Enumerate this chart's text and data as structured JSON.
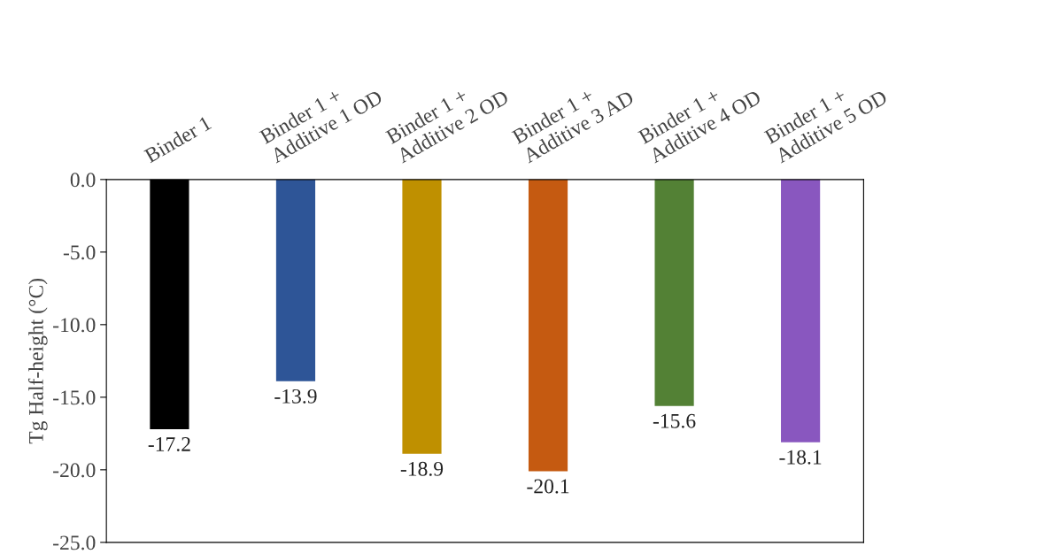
{
  "chart_data": {
    "type": "bar",
    "ylabel": "Tg Half-height (°C)",
    "categories": [
      "Binder 1",
      "Binder 1 + Additive 1 OD",
      "Binder 1 + Additive 2 OD",
      "Binder 1 + Additive 3 AD",
      "Binder 1 + Additive 4 OD",
      "Binder 1 + Additive 5 OD"
    ],
    "values": [
      -17.2,
      -13.9,
      -18.9,
      -20.1,
      -15.6,
      -18.1
    ],
    "colors": [
      "#000000",
      "#2e5597",
      "#bf9000",
      "#c55a11",
      "#538135",
      "#8957bf"
    ],
    "value_labels": [
      "-17.2",
      "-13.9",
      "-18.9",
      "-20.1",
      "-15.6",
      "-18.1"
    ],
    "ylim": [
      -25,
      0
    ],
    "yticks": [
      {
        "value": -25,
        "label": "-25.0"
      },
      {
        "value": -20,
        "label": "-20.0"
      },
      {
        "value": -15,
        "label": "-15.0"
      },
      {
        "value": -10,
        "label": "-10.0"
      },
      {
        "value": -5,
        "label": "-5.0"
      },
      {
        "value": 0,
        "label": "0.0"
      }
    ],
    "grid": false,
    "legend": false
  }
}
